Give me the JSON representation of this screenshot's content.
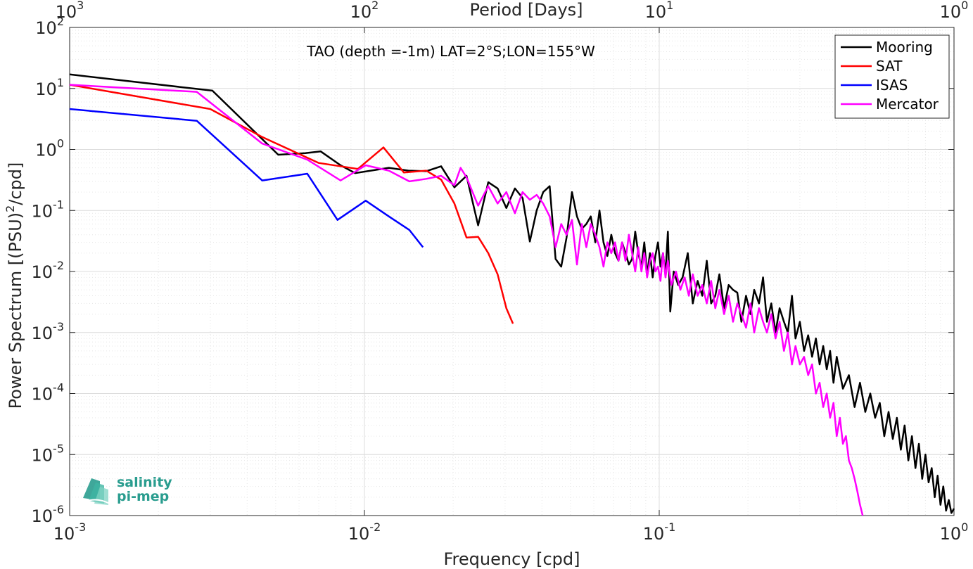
{
  "chart_data": {
    "type": "line",
    "title": "TAO (depth =-1m) LAT=2°S;LON=155°W",
    "xlabel": "Frequency [cpd]",
    "ylabel": "Power Spectrum [(PSU)",
    "ylabel_sup": "2",
    "ylabel_tail": "/cpd]",
    "top_xlabel": "Period [Days]",
    "xscale": "log",
    "yscale": "log",
    "xlim": [
      0.001,
      1
    ],
    "ylim": [
      1e-06,
      100
    ],
    "grid": true,
    "legend_position": "top-right",
    "x_ticks": [
      {
        "base": "10",
        "exp": "-3",
        "value": 0.001
      },
      {
        "base": "10",
        "exp": "-2",
        "value": 0.01
      },
      {
        "base": "10",
        "exp": "-1",
        "value": 0.1
      },
      {
        "base": "10",
        "exp": "0",
        "value": 1
      }
    ],
    "top_ticks": [
      {
        "base": "10",
        "exp": "3",
        "value": 0.001
      },
      {
        "base": "10",
        "exp": "2",
        "value": 0.01
      },
      {
        "base": "10",
        "exp": "1",
        "value": 0.1
      },
      {
        "base": "10",
        "exp": "0",
        "value": 1
      }
    ],
    "y_ticks": [
      {
        "base": "10",
        "exp": "2",
        "value": 100
      },
      {
        "base": "10",
        "exp": "1",
        "value": 10
      },
      {
        "base": "10",
        "exp": "0",
        "value": 1
      },
      {
        "base": "10",
        "exp": "-1",
        "value": 0.1
      },
      {
        "base": "10",
        "exp": "-2",
        "value": 0.01
      },
      {
        "base": "10",
        "exp": "-3",
        "value": 0.001
      },
      {
        "base": "10",
        "exp": "-4",
        "value": 0.0001
      },
      {
        "base": "10",
        "exp": "-5",
        "value": 1e-05
      },
      {
        "base": "10",
        "exp": "-6",
        "value": 1e-06
      }
    ],
    "series": [
      {
        "name": "Mooring",
        "color": "#000000",
        "points": [
          [
            0.001,
            17
          ],
          [
            0.00305,
            9.2
          ],
          [
            0.0051,
            0.82
          ],
          [
            0.0063,
            0.87
          ],
          [
            0.0071,
            0.93
          ],
          [
            0.0083,
            0.55
          ],
          [
            0.0093,
            0.41
          ],
          [
            0.0121,
            0.5
          ],
          [
            0.0141,
            0.45
          ],
          [
            0.0162,
            0.44
          ],
          [
            0.0182,
            0.53
          ],
          [
            0.0202,
            0.24
          ],
          [
            0.0222,
            0.37
          ],
          [
            0.0243,
            0.057
          ],
          [
            0.0263,
            0.29
          ],
          [
            0.0283,
            0.23
          ],
          [
            0.0303,
            0.11
          ],
          [
            0.0324,
            0.23
          ],
          [
            0.0344,
            0.16
          ],
          [
            0.0364,
            0.031
          ],
          [
            0.0384,
            0.1
          ],
          [
            0.0404,
            0.2
          ],
          [
            0.0425,
            0.25
          ],
          [
            0.0445,
            0.016
          ],
          [
            0.0465,
            0.012
          ],
          [
            0.0485,
            0.036
          ],
          [
            0.0506,
            0.2
          ],
          [
            0.0526,
            0.08
          ],
          [
            0.0546,
            0.05
          ],
          [
            0.0566,
            0.06
          ],
          [
            0.0586,
            0.08
          ],
          [
            0.0607,
            0.03
          ],
          [
            0.0627,
            0.1
          ],
          [
            0.0647,
            0.03
          ],
          [
            0.0667,
            0.018
          ],
          [
            0.0688,
            0.04
          ],
          [
            0.0708,
            0.02
          ],
          [
            0.0728,
            0.015
          ],
          [
            0.0748,
            0.03
          ],
          [
            0.0768,
            0.02
          ],
          [
            0.0789,
            0.013
          ],
          [
            0.0809,
            0.016
          ],
          [
            0.0829,
            0.045
          ],
          [
            0.0849,
            0.02
          ],
          [
            0.087,
            0.012
          ],
          [
            0.089,
            0.03
          ],
          [
            0.091,
            0.009
          ],
          [
            0.093,
            0.02
          ],
          [
            0.095,
            0.008
          ],
          [
            0.097,
            0.018
          ],
          [
            0.099,
            0.03
          ],
          [
            0.101,
            0.012
          ],
          [
            0.103,
            0.02
          ],
          [
            0.105,
            0.009
          ],
          [
            0.107,
            0.045
          ],
          [
            0.109,
            0.0022
          ],
          [
            0.112,
            0.01
          ],
          [
            0.116,
            0.006
          ],
          [
            0.12,
            0.008
          ],
          [
            0.125,
            0.02
          ],
          [
            0.13,
            0.003
          ],
          [
            0.135,
            0.007
          ],
          [
            0.14,
            0.004
          ],
          [
            0.145,
            0.015
          ],
          [
            0.15,
            0.003
          ],
          [
            0.155,
            0.004
          ],
          [
            0.16,
            0.009
          ],
          [
            0.166,
            0.0025
          ],
          [
            0.172,
            0.006
          ],
          [
            0.178,
            0.005
          ],
          [
            0.184,
            0.0045
          ],
          [
            0.19,
            0.0015
          ],
          [
            0.197,
            0.004
          ],
          [
            0.204,
            0.002
          ],
          [
            0.21,
            0.005
          ],
          [
            0.218,
            0.003
          ],
          [
            0.225,
            0.008
          ],
          [
            0.232,
            0.0015
          ],
          [
            0.24,
            0.003
          ],
          [
            0.248,
            0.001
          ],
          [
            0.256,
            0.0025
          ],
          [
            0.265,
            0.0015
          ],
          [
            0.273,
            0.001
          ],
          [
            0.282,
            0.004
          ],
          [
            0.29,
            0.0008
          ],
          [
            0.3,
            0.0015
          ],
          [
            0.31,
            0.0005
          ],
          [
            0.32,
            0.0009
          ],
          [
            0.33,
            0.0004
          ],
          [
            0.34,
            0.0008
          ],
          [
            0.35,
            0.0003
          ],
          [
            0.36,
            0.0006
          ],
          [
            0.37,
            0.00025
          ],
          [
            0.38,
            0.0005
          ],
          [
            0.39,
            0.00015
          ],
          [
            0.4,
            0.0004
          ],
          [
            0.42,
            0.00012
          ],
          [
            0.44,
            0.0002
          ],
          [
            0.46,
            6e-05
          ],
          [
            0.48,
            0.00015
          ],
          [
            0.5,
            5e-05
          ],
          [
            0.52,
            0.0001
          ],
          [
            0.54,
            4e-05
          ],
          [
            0.56,
            7e-05
          ],
          [
            0.58,
            2e-05
          ],
          [
            0.6,
            5e-05
          ],
          [
            0.62,
            1.8e-05
          ],
          [
            0.64,
            4e-05
          ],
          [
            0.66,
            1.2e-05
          ],
          [
            0.68,
            3e-05
          ],
          [
            0.7,
            8e-06
          ],
          [
            0.72,
            2e-05
          ],
          [
            0.74,
            6e-06
          ],
          [
            0.76,
            1.5e-05
          ],
          [
            0.78,
            4e-06
          ],
          [
            0.8,
            1e-05
          ],
          [
            0.82,
            3.5e-06
          ],
          [
            0.84,
            6e-06
          ],
          [
            0.86,
            2e-06
          ],
          [
            0.88,
            4.5e-06
          ],
          [
            0.9,
            1.5e-06
          ],
          [
            0.92,
            3e-06
          ],
          [
            0.94,
            1.2e-06
          ],
          [
            0.96,
            1.8e-06
          ],
          [
            0.98,
            1.1e-06
          ],
          [
            1.0,
            1.3e-06
          ]
        ]
      },
      {
        "name": "SAT",
        "color": "#ff0000",
        "points": [
          [
            0.001,
            11.5
          ],
          [
            0.003,
            4.6
          ],
          [
            0.0045,
            1.6
          ],
          [
            0.007,
            0.6
          ],
          [
            0.0095,
            0.48
          ],
          [
            0.0116,
            1.08
          ],
          [
            0.0136,
            0.42
          ],
          [
            0.0162,
            0.45
          ],
          [
            0.0182,
            0.32
          ],
          [
            0.0202,
            0.13
          ],
          [
            0.0222,
            0.036
          ],
          [
            0.0243,
            0.037
          ],
          [
            0.0263,
            0.02
          ],
          [
            0.0283,
            0.009
          ],
          [
            0.0303,
            0.0025
          ],
          [
            0.0319,
            0.0014
          ]
        ]
      },
      {
        "name": "ISAS",
        "color": "#0000ff",
        "points": [
          [
            0.001,
            4.6
          ],
          [
            0.0027,
            2.95
          ],
          [
            0.0045,
            0.31
          ],
          [
            0.0064,
            0.4
          ],
          [
            0.0081,
            0.07
          ],
          [
            0.0101,
            0.145
          ],
          [
            0.0121,
            0.08
          ],
          [
            0.0142,
            0.048
          ],
          [
            0.0158,
            0.025
          ]
        ]
      },
      {
        "name": "Mercator",
        "color": "#ff00ff",
        "points": [
          [
            0.001,
            11.5
          ],
          [
            0.0027,
            8.8
          ],
          [
            0.0045,
            1.25
          ],
          [
            0.0064,
            0.68
          ],
          [
            0.0083,
            0.31
          ],
          [
            0.0101,
            0.55
          ],
          [
            0.0121,
            0.45
          ],
          [
            0.0142,
            0.3
          ],
          [
            0.0162,
            0.33
          ],
          [
            0.0182,
            0.37
          ],
          [
            0.0202,
            0.26
          ],
          [
            0.0212,
            0.5
          ],
          [
            0.0222,
            0.35
          ],
          [
            0.0243,
            0.12
          ],
          [
            0.0263,
            0.25
          ],
          [
            0.0283,
            0.13
          ],
          [
            0.0303,
            0.2
          ],
          [
            0.0324,
            0.09
          ],
          [
            0.0344,
            0.2
          ],
          [
            0.0364,
            0.15
          ],
          [
            0.0384,
            0.18
          ],
          [
            0.0404,
            0.13
          ],
          [
            0.0425,
            0.08
          ],
          [
            0.0445,
            0.025
          ],
          [
            0.0465,
            0.06
          ],
          [
            0.0485,
            0.04
          ],
          [
            0.0506,
            0.07
          ],
          [
            0.0526,
            0.013
          ],
          [
            0.0546,
            0.06
          ],
          [
            0.0566,
            0.025
          ],
          [
            0.0586,
            0.06
          ],
          [
            0.0607,
            0.04
          ],
          [
            0.0627,
            0.025
          ],
          [
            0.0647,
            0.012
          ],
          [
            0.0667,
            0.03
          ],
          [
            0.0688,
            0.02
          ],
          [
            0.0708,
            0.03
          ],
          [
            0.0728,
            0.015
          ],
          [
            0.0748,
            0.03
          ],
          [
            0.0768,
            0.015
          ],
          [
            0.0789,
            0.04
          ],
          [
            0.0809,
            0.02
          ],
          [
            0.0829,
            0.01
          ],
          [
            0.0849,
            0.025
          ],
          [
            0.087,
            0.01
          ],
          [
            0.089,
            0.02
          ],
          [
            0.091,
            0.008
          ],
          [
            0.093,
            0.015
          ],
          [
            0.095,
            0.02
          ],
          [
            0.097,
            0.01
          ],
          [
            0.099,
            0.012
          ],
          [
            0.101,
            0.007
          ],
          [
            0.103,
            0.02
          ],
          [
            0.105,
            0.008
          ],
          [
            0.107,
            0.015
          ],
          [
            0.11,
            0.006
          ],
          [
            0.114,
            0.01
          ],
          [
            0.118,
            0.005
          ],
          [
            0.122,
            0.008
          ],
          [
            0.126,
            0.004
          ],
          [
            0.13,
            0.009
          ],
          [
            0.135,
            0.004
          ],
          [
            0.14,
            0.006
          ],
          [
            0.145,
            0.003
          ],
          [
            0.15,
            0.007
          ],
          [
            0.155,
            0.0025
          ],
          [
            0.16,
            0.005
          ],
          [
            0.166,
            0.002
          ],
          [
            0.172,
            0.004
          ],
          [
            0.178,
            0.0015
          ],
          [
            0.184,
            0.003
          ],
          [
            0.19,
            0.002
          ],
          [
            0.197,
            0.0012
          ],
          [
            0.204,
            0.003
          ],
          [
            0.21,
            0.001
          ],
          [
            0.218,
            0.0025
          ],
          [
            0.225,
            0.0015
          ],
          [
            0.232,
            0.001
          ],
          [
            0.24,
            0.002
          ],
          [
            0.248,
            0.0008
          ],
          [
            0.256,
            0.0015
          ],
          [
            0.265,
            0.0005
          ],
          [
            0.273,
            0.001
          ],
          [
            0.282,
            0.0003
          ],
          [
            0.29,
            0.0006
          ],
          [
            0.3,
            0.0003
          ],
          [
            0.31,
            0.0004
          ],
          [
            0.32,
            0.0002
          ],
          [
            0.33,
            0.0003
          ],
          [
            0.34,
            0.0001
          ],
          [
            0.35,
            0.00015
          ],
          [
            0.36,
            6e-05
          ],
          [
            0.37,
            0.0001
          ],
          [
            0.38,
            4e-05
          ],
          [
            0.39,
            7e-05
          ],
          [
            0.4,
            2e-05
          ],
          [
            0.41,
            4e-05
          ],
          [
            0.42,
            1.5e-05
          ],
          [
            0.43,
            2e-05
          ],
          [
            0.44,
            8e-06
          ],
          [
            0.45,
            6e-06
          ],
          [
            0.46,
            4e-06
          ],
          [
            0.47,
            2.5e-06
          ],
          [
            0.48,
            1.5e-06
          ],
          [
            0.49,
            1e-06
          ]
        ]
      }
    ]
  },
  "logo": {
    "line1": "salinity",
    "line2": "pi-mep"
  }
}
